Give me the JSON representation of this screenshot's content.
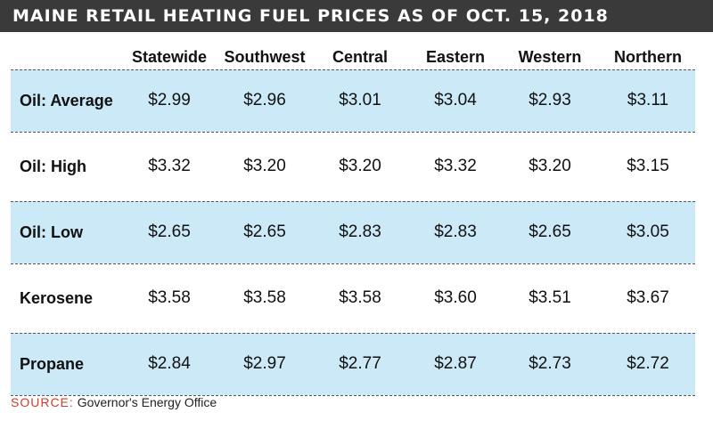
{
  "title": "MAINE RETAIL HEATING FUEL PRICES AS OF OCT. 15, 2018",
  "colors": {
    "title_bar": "#3a3a3a",
    "row_shade": "#cbe9f7",
    "source_label": "#d43b2a"
  },
  "chart_data": {
    "type": "table",
    "columns": [
      "Statewide",
      "Southwest",
      "Central",
      "Eastern",
      "Western",
      "Northern"
    ],
    "rows": [
      {
        "label": "Oil: Average",
        "values": [
          "$2.99",
          "$2.96",
          "$3.01",
          "$3.04",
          "$2.93",
          "$3.11"
        ]
      },
      {
        "label": "Oil: High",
        "values": [
          "$3.32",
          "$3.20",
          "$3.20",
          "$3.32",
          "$3.20",
          "$3.15"
        ]
      },
      {
        "label": "Oil: Low",
        "values": [
          "$2.65",
          "$2.65",
          "$2.83",
          "$2.83",
          "$2.65",
          "$3.05"
        ]
      },
      {
        "label": "Kerosene",
        "values": [
          "$3.58",
          "$3.58",
          "$3.58",
          "$3.60",
          "$3.51",
          "$3.67"
        ]
      },
      {
        "label": "Propane",
        "values": [
          "$2.84",
          "$2.97",
          "$2.77",
          "$2.87",
          "$2.73",
          "$2.72"
        ]
      }
    ]
  },
  "source": {
    "label": "SOURCE:",
    "text": "Governor's Energy Office"
  }
}
